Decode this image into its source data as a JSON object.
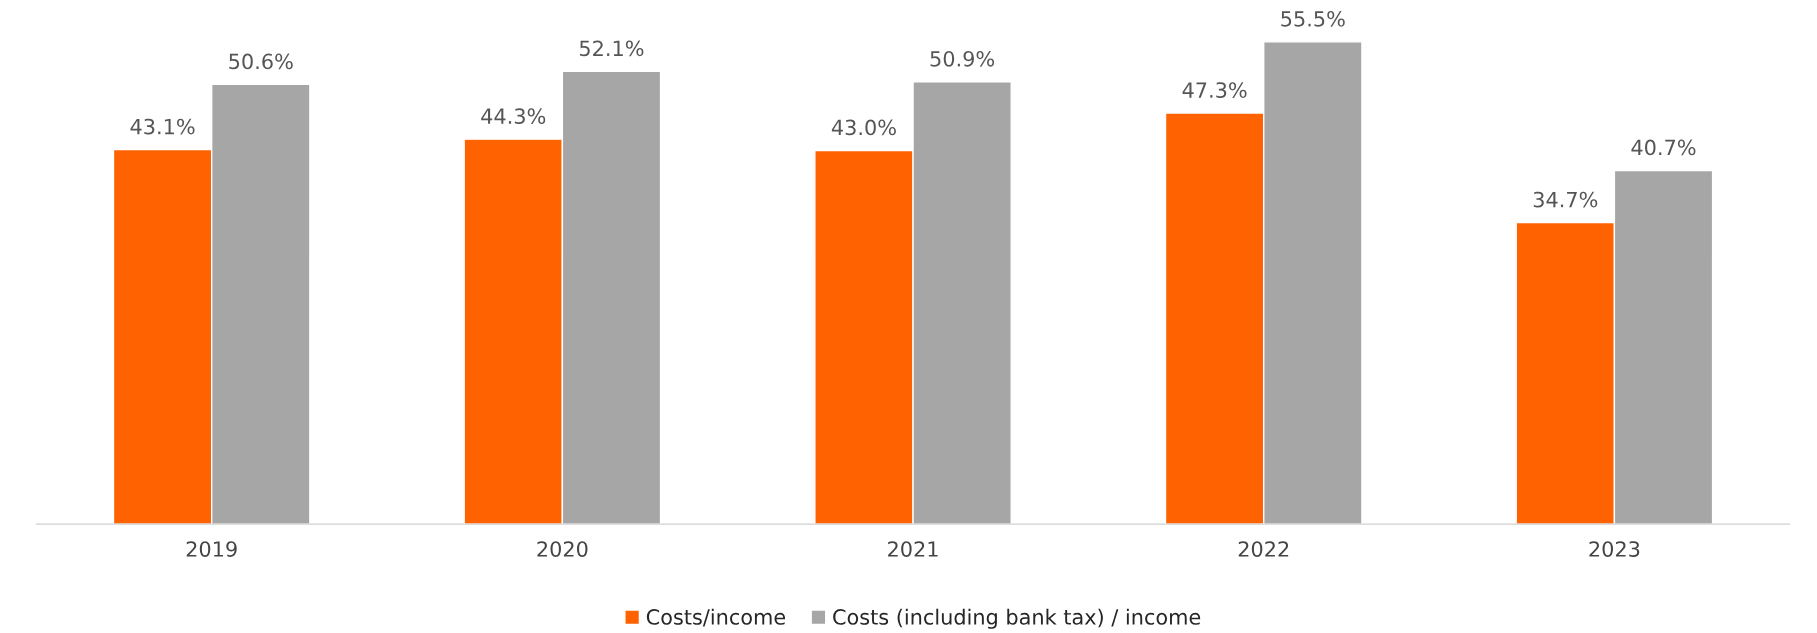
{
  "chart_data": {
    "type": "bar",
    "categories": [
      "2019",
      "2020",
      "2021",
      "2022",
      "2023"
    ],
    "series": [
      {
        "name": "Costs/income",
        "color": "#ff6200",
        "values": [
          43.1,
          44.3,
          43.0,
          47.3,
          34.7
        ],
        "value_labels": [
          "43.1%",
          "44.3%",
          "43.0%",
          "47.3%",
          "34.7%"
        ]
      },
      {
        "name": "Costs (including bank tax) / income",
        "color": "#a6a6a6",
        "values": [
          50.6,
          52.1,
          50.9,
          55.5,
          40.7
        ],
        "value_labels": [
          "50.6%",
          "52.1%",
          "50.9%",
          "55.5%",
          "40.7%"
        ]
      }
    ],
    "legend": "bottom",
    "tick_labels": "x",
    "grid": false
  }
}
